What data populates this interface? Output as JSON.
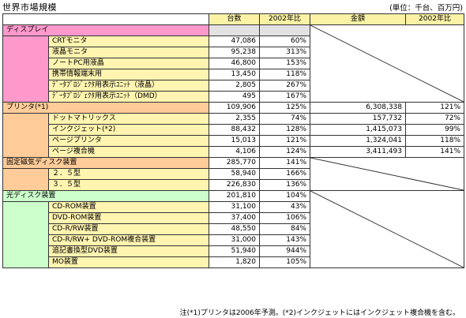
{
  "title": "世界市場規模",
  "unit": "(単位：千台、百万円)",
  "headers": {
    "units": "台数",
    "units_yoy": "2002年比",
    "amount": "金額",
    "amount_yoy": "2002年比"
  },
  "sections": [
    {
      "name": "ディスプレイ",
      "units": "",
      "units_yoy": "",
      "color": "#ff99cc",
      "items": [
        {
          "name": "CRTモニタ",
          "units": "47,086",
          "units_yoy": "60%"
        },
        {
          "name": "液晶モニタ",
          "units": "95,238",
          "units_yoy": "313%"
        },
        {
          "name": "ノートPC用液晶",
          "units": "46,800",
          "units_yoy": "153%"
        },
        {
          "name": "携帯情報端末用",
          "units": "13,450",
          "units_yoy": "118%"
        },
        {
          "name": "ﾃﾞｰﾀﾌﾟﾛｼﾞｪｸﾀ用表示ﾕﾆｯﾄ（液晶）",
          "units": "2,805",
          "units_yoy": "267%"
        },
        {
          "name": "ﾃﾞｰﾀﾌﾟﾛｼﾞｪｸﾀ用表示ﾕﾆｯﾄ（DMD）",
          "units": "495",
          "units_yoy": "167%"
        }
      ]
    },
    {
      "name": "プリンタ(*1)",
      "units": "109,906",
      "units_yoy": "125%",
      "amount": "6,308,338",
      "amount_yoy": "121%",
      "color": "#ffcc99",
      "items": [
        {
          "name": "ドットマトリックス",
          "units": "2,355",
          "units_yoy": "74%",
          "amount": "157,732",
          "amount_yoy": "72%"
        },
        {
          "name": "インクジェット(*2)",
          "units": "88,432",
          "units_yoy": "128%",
          "amount": "1,415,073",
          "amount_yoy": "99%"
        },
        {
          "name": "ページプリンタ",
          "units": "15,013",
          "units_yoy": "121%",
          "amount": "1,324,041",
          "amount_yoy": "118%"
        },
        {
          "name": "ページ複合機",
          "units": "4,106",
          "units_yoy": "124%",
          "amount": "3,411,493",
          "amount_yoy": "141%"
        }
      ]
    },
    {
      "name": "固定磁気ディスク装置",
      "units": "285,770",
      "units_yoy": "141%",
      "color": "#ffcc99",
      "items": [
        {
          "name": "２．５型",
          "units": "58,940",
          "units_yoy": "166%"
        },
        {
          "name": "３．５型",
          "units": "226,830",
          "units_yoy": "136%"
        }
      ]
    },
    {
      "name": "光ディスク装置",
      "units": "201,810",
      "units_yoy": "104%",
      "color": "#ccffcc",
      "items": [
        {
          "name": "CD-ROM装置",
          "units": "31,100",
          "units_yoy": "43%"
        },
        {
          "name": "DVD-ROM装置",
          "units": "37,400",
          "units_yoy": "106%"
        },
        {
          "name": "CD-R/RW装置",
          "units": "48,550",
          "units_yoy": "84%"
        },
        {
          "name": "CD-R/RW+ DVD-ROM複合装置",
          "units": "31,000",
          "units_yoy": "143%"
        },
        {
          "name": "追記書換型DVD装置",
          "units": "51,940",
          "units_yoy": "944%"
        },
        {
          "name": "MO装置",
          "units": "1,820",
          "units_yoy": "105%"
        }
      ]
    }
  ],
  "footnote": "注(*1)プリンタは2006年予測。(*2)インクジェットにはインクジェット複合機を含む。"
}
